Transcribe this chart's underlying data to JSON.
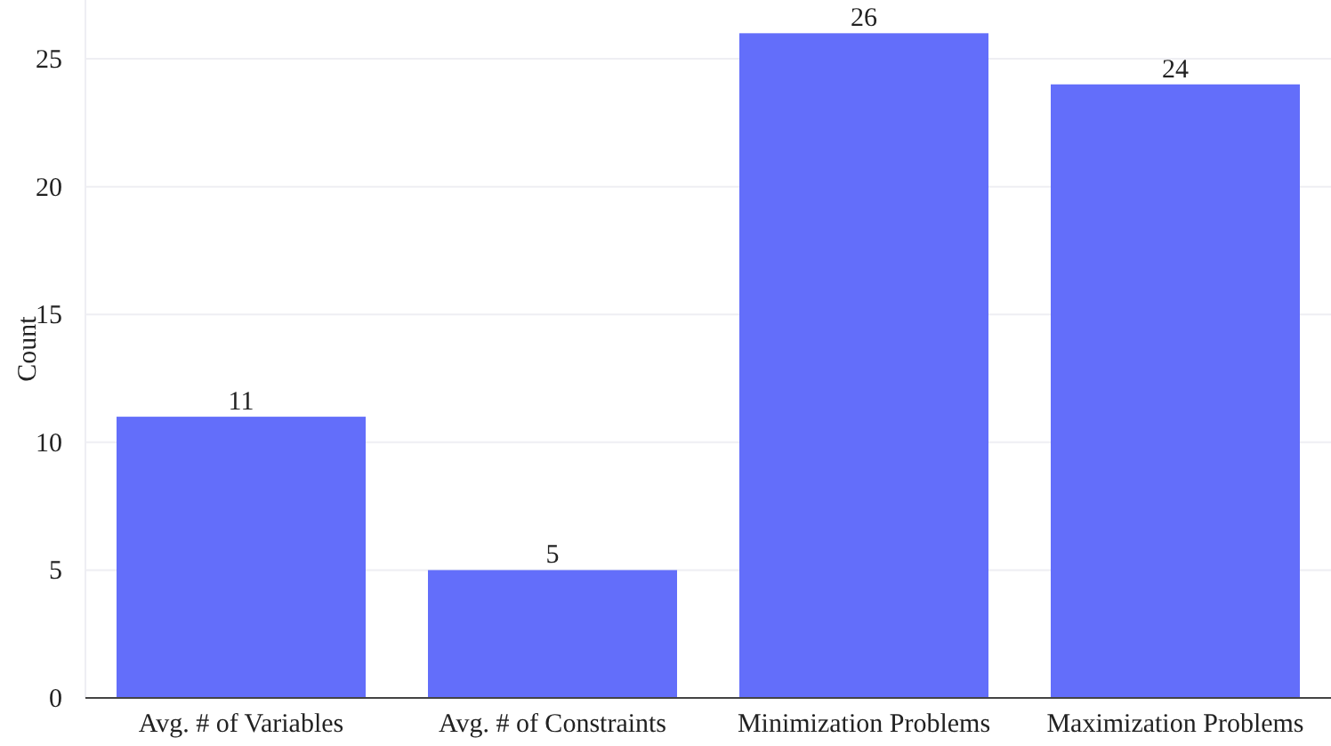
{
  "chart_data": {
    "type": "bar",
    "ylabel": "Count",
    "categories": [
      "Avg. # of Variables",
      "Avg. # of Constraints",
      "Minimization Problems",
      "Maximization Problems"
    ],
    "values": [
      11,
      5,
      26,
      24
    ],
    "color": "#636efa",
    "ylim": [
      0,
      27.3
    ],
    "yticks": [
      0,
      5,
      10,
      15,
      20,
      25
    ],
    "grid": "y",
    "data_labels": true
  }
}
